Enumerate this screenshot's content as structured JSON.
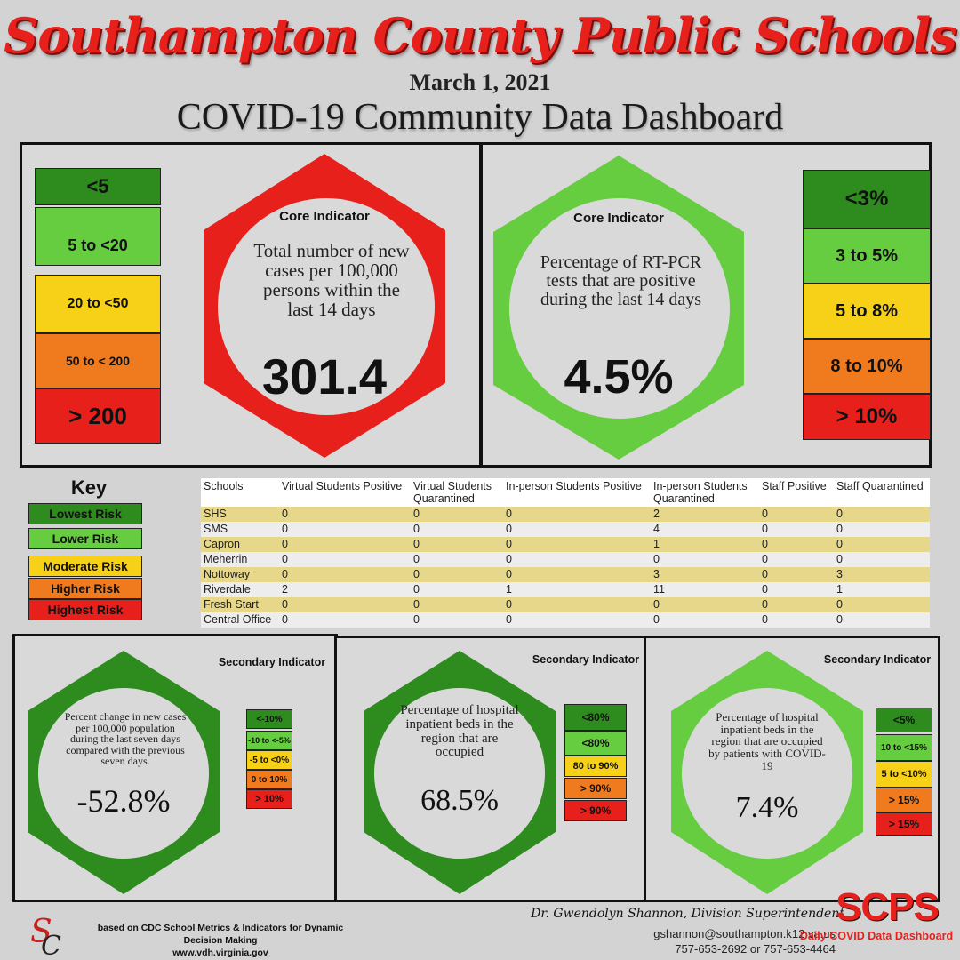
{
  "header": {
    "org_title": "Southampton County Public Schools",
    "date": "March 1, 2021",
    "dashboard_title": "COVID-19 Community Data Dashboard"
  },
  "colors": {
    "dark_green": "#2e8b1e",
    "light_green": "#66cc40",
    "yellow": "#f7d117",
    "orange": "#f07a1e",
    "red": "#e8201c"
  },
  "core_left": {
    "label": "Core Indicator",
    "description": "Total number of new cases per 100,000 persons within the last 14 days",
    "value": "301.4",
    "hex_color": "#e8201c",
    "scale": [
      "<5",
      "5 to  <20",
      "20 to <50",
      "50 to < 200",
      "> 200"
    ]
  },
  "core_right": {
    "label": "Core Indicator",
    "description": "Percentage of RT-PCR tests that are positive during the last 14 days",
    "value": "4.5%",
    "hex_color": "#66cc40",
    "scale": [
      "<3%",
      "3 to 5%",
      "5 to 8%",
      "8 to 10%",
      "> 10%"
    ]
  },
  "key": {
    "title": "Key",
    "items": [
      "Lowest Risk",
      "Lower Risk",
      "Moderate Risk",
      "Higher Risk",
      "Highest Risk"
    ]
  },
  "table": {
    "headers": [
      "Schools",
      "Virtual Students Positive",
      "Virtual Students Quarantined",
      "In-person Students Positive",
      "In-person Students Quarantined",
      "Staff Positive",
      "Staff Quarantined"
    ],
    "rows": [
      [
        "SHS",
        "0",
        "0",
        "0",
        "2",
        "0",
        "0"
      ],
      [
        "SMS",
        "0",
        "0",
        "0",
        "4",
        "0",
        "0"
      ],
      [
        "Capron",
        "0",
        "0",
        "0",
        "1",
        "0",
        "0"
      ],
      [
        "Meherrin",
        "0",
        "0",
        "0",
        "0",
        "0",
        "0"
      ],
      [
        "Nottoway",
        "0",
        "0",
        "0",
        "3",
        "0",
        "3"
      ],
      [
        "Riverdale",
        "2",
        "0",
        "1",
        "11",
        "0",
        "1"
      ],
      [
        "Fresh Start",
        "0",
        "0",
        "0",
        "0",
        "0",
        "0"
      ],
      [
        "Central Office",
        "0",
        "0",
        "0",
        "0",
        "0",
        "0"
      ]
    ]
  },
  "secondary": [
    {
      "label": "Secondary Indicator",
      "description": "Percent change in new cases per 100,000 population during the last seven days compared with the previous seven days.",
      "value": "-52.8%",
      "hex_color": "#2e8b1e",
      "scale": [
        "<-10%",
        "-10 to <-5%",
        "-5 to <0%",
        "0 to 10%",
        "> 10%"
      ]
    },
    {
      "label": "Secondary Indicator",
      "description": "Percentage of hospital inpatient beds in the region that are occupied",
      "value": "68.5%",
      "hex_color": "#2e8b1e",
      "scale": [
        "<80%",
        "<80%",
        "80 to 90%",
        "> 90%",
        "> 90%"
      ]
    },
    {
      "label": "Secondary Indicator",
      "description": "Percentage of hospital inpatient beds in the region that are occupied by patients with COVID-19",
      "value": "7.4%",
      "hex_color": "#66cc40",
      "scale": [
        "<5%",
        "10 to <15%",
        "5 to <10%",
        "> 15%",
        "> 15%"
      ]
    }
  ],
  "footer": {
    "note_line1": "based on CDC School Metrics & Indicators for Dynamic Decision Making",
    "note_line2": "www.vdh.virginia.gov",
    "superintendent": "Dr. Gwendolyn Shannon, Division Superintendent",
    "email": "gshannon@southampton.k12.va.us",
    "phones": "757-653-2692 or 757-653-4464",
    "logo_text": "SCPS",
    "logo_sub": "Daily COVID Data Dashboard",
    "monogram": "SC"
  }
}
